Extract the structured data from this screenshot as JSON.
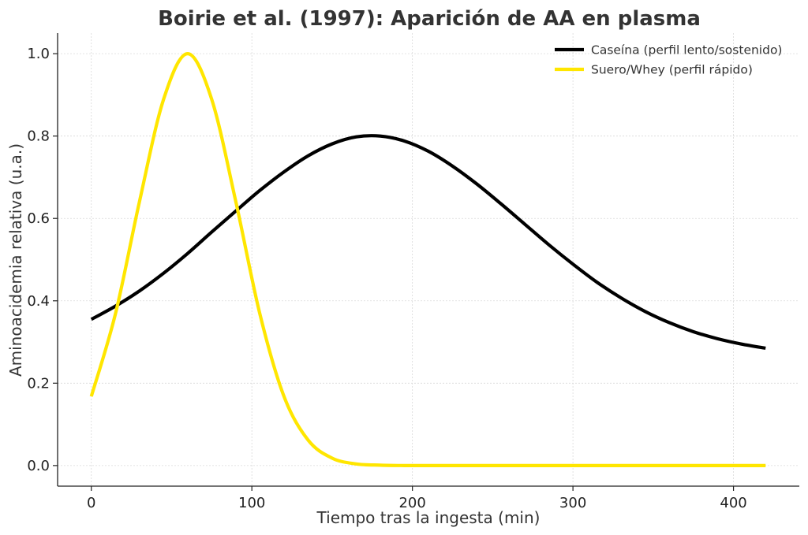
{
  "chart_data": {
    "type": "line",
    "title": "Boirie et al. (1997): Aparición de AA en plasma",
    "xlabel": "Tiempo tras la ingesta (min)",
    "ylabel": "Aminoacidemia relativa (u.a.)",
    "xlim": [
      -21,
      441
    ],
    "ylim": [
      -0.05,
      1.05
    ],
    "xticks": [
      0,
      100,
      200,
      300,
      400
    ],
    "yticks": [
      0.0,
      0.2,
      0.4,
      0.6,
      0.8,
      1.0
    ],
    "grid": true,
    "legend_position": "top-right",
    "x": [
      0,
      15,
      30,
      45,
      60,
      75,
      90,
      105,
      120,
      135,
      150,
      165,
      180,
      195,
      210,
      225,
      240,
      255,
      270,
      285,
      300,
      315,
      330,
      345,
      360,
      375,
      390,
      405,
      420
    ],
    "series": [
      {
        "name": "Caseína (perfil lento/sostenido)",
        "color": "#000000",
        "values": [
          0.355,
          0.387,
          0.424,
          0.467,
          0.515,
          0.567,
          0.618,
          0.668,
          0.713,
          0.752,
          0.781,
          0.798,
          0.8,
          0.788,
          0.763,
          0.727,
          0.684,
          0.636,
          0.586,
          0.536,
          0.489,
          0.445,
          0.407,
          0.374,
          0.347,
          0.325,
          0.308,
          0.295,
          0.285
        ]
      },
      {
        "name": "Suero/Whey (perfil rápido)",
        "color": "#ffe600",
        "values": [
          0.168,
          0.368,
          0.641,
          0.889,
          1.0,
          0.889,
          0.641,
          0.368,
          0.168,
          0.062,
          0.018,
          0.004,
          0.001,
          0.0,
          0.0,
          0.0,
          0.0,
          0.0,
          0.0,
          0.0,
          0.0,
          0.0,
          0.0,
          0.0,
          0.0,
          0.0,
          0.0,
          0.0,
          0.0
        ]
      }
    ]
  }
}
